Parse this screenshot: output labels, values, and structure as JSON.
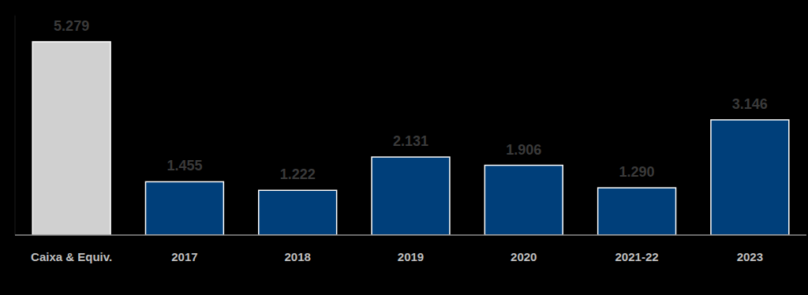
{
  "chart_data": {
    "type": "bar",
    "categories": [
      "Caixa & Equiv.",
      "2017",
      "2018",
      "2019",
      "2020",
      "2021-22",
      "2023"
    ],
    "values": [
      5279,
      1455,
      1222,
      2131,
      1906,
      1290,
      3146
    ],
    "value_labels": [
      "5.279",
      "1.455",
      "1.222",
      "2.131",
      "1.906",
      "1.290",
      "3.146"
    ],
    "colors": [
      "#d0d0d0",
      "#003f7a",
      "#003f7a",
      "#003f7a",
      "#003f7a",
      "#003f7a",
      "#003f7a"
    ],
    "ylim": [
      0,
      6000
    ],
    "data_labels": true,
    "tick_labels": "x",
    "grid": false
  }
}
